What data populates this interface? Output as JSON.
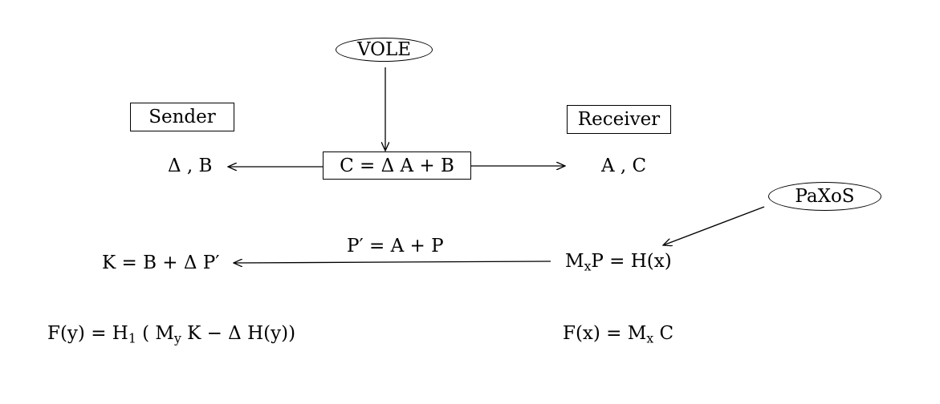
{
  "nodes": {
    "vole": "VOLE",
    "paxos": "PaXoS",
    "sender": "Sender",
    "receiver": "Receiver",
    "c_box": "C =  Δ A + B",
    "sender_vals": "Δ , B",
    "receiver_vals": "A , C"
  },
  "formulas": {
    "p_prime": "P′ = A + P",
    "k_left": "K = B +  Δ P′",
    "mxp_m": "M",
    "mxp_sub": "x",
    "mxp_rest": "P = H(x)",
    "fy_a": "F(y) = H",
    "fy_sub1": "1",
    "fy_b": " ( M",
    "fy_sub2": "y",
    "fy_c": " K  −  Δ H(y))",
    "fx_a": "F(x) = M",
    "fx_sub": "x",
    "fx_b": " C"
  }
}
